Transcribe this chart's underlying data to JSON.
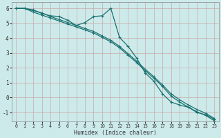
{
  "xlabel": "Humidex (Indice chaleur)",
  "background_color": "#cdeaea",
  "grid_color": "#c8a8a8",
  "line_color": "#1a7070",
  "xlim": [
    -0.5,
    23.5
  ],
  "ylim": [
    -1.6,
    6.4
  ],
  "yticks": [
    -1,
    0,
    1,
    2,
    3,
    4,
    5,
    6
  ],
  "xticks": [
    0,
    1,
    2,
    3,
    4,
    5,
    6,
    7,
    8,
    9,
    10,
    11,
    12,
    13,
    14,
    15,
    16,
    17,
    18,
    19,
    20,
    21,
    22,
    23
  ],
  "line1_x": [
    0,
    1,
    2,
    3,
    4,
    5,
    6,
    7,
    8,
    9,
    10,
    11,
    12,
    13,
    14,
    15,
    16,
    17,
    18,
    19,
    20,
    21,
    22,
    23
  ],
  "line1_y": [
    6.0,
    6.0,
    5.85,
    5.7,
    5.45,
    5.25,
    5.05,
    4.85,
    4.65,
    4.45,
    4.15,
    3.85,
    3.45,
    2.95,
    2.45,
    1.9,
    1.4,
    0.85,
    0.25,
    -0.15,
    -0.5,
    -0.8,
    -1.05,
    -1.4
  ],
  "line2_x": [
    0,
    1,
    2,
    3,
    4,
    5,
    6,
    7,
    8,
    9,
    10,
    11,
    12,
    13,
    14,
    15,
    16,
    17,
    18,
    19,
    20,
    21,
    22,
    23
  ],
  "line2_y": [
    6.0,
    6.0,
    5.75,
    5.55,
    5.35,
    5.15,
    4.95,
    4.75,
    4.55,
    4.35,
    4.05,
    3.75,
    3.35,
    2.85,
    2.35,
    1.8,
    1.3,
    0.75,
    0.1,
    -0.3,
    -0.65,
    -0.95,
    -1.2,
    -1.55
  ],
  "line3_x": [
    0,
    1,
    2,
    3,
    4,
    5,
    6,
    7,
    8,
    9,
    10,
    11,
    12,
    13,
    14,
    15,
    16,
    17,
    18,
    19,
    20,
    21,
    22,
    23
  ],
  "line3_y": [
    6.0,
    6.0,
    5.9,
    5.65,
    5.5,
    5.45,
    5.2,
    4.85,
    5.05,
    5.45,
    5.5,
    6.0,
    4.05,
    3.45,
    2.65,
    1.65,
    1.1,
    0.25,
    -0.3,
    -0.5,
    -0.65,
    -1.0,
    -1.15,
    -1.45
  ]
}
